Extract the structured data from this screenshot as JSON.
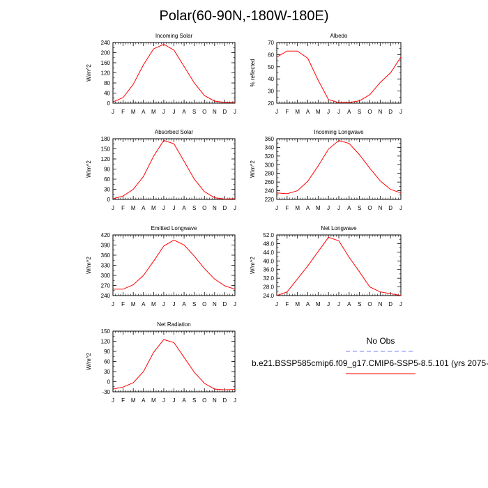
{
  "title": "Polar(60-90N,-180W-180E)",
  "legend": {
    "obs_label": "No Obs",
    "obs_color": "#8080ff",
    "model_label": "b.e21.BSSP585cmip6.f09_g17.CMIP6-SSP5-8.5.101 (yrs 2075-",
    "model_color": "#ff0000"
  },
  "chart_data": [
    {
      "type": "line",
      "title": "Incoming Solar",
      "ylabel": "W/m^2",
      "categories": [
        "J",
        "F",
        "M",
        "A",
        "M",
        "J",
        "J",
        "A",
        "S",
        "O",
        "N",
        "D",
        "J"
      ],
      "ylim": [
        0,
        240
      ],
      "yticks": [
        "0",
        "40",
        "80",
        "120",
        "160",
        "200",
        "240"
      ],
      "series": [
        {
          "values": [
            5,
            22,
            75,
            152,
            215,
            233,
            210,
            145,
            80,
            30,
            8,
            3,
            5
          ]
        }
      ]
    },
    {
      "type": "line",
      "title": "Albedo",
      "ylabel": "% reflected",
      "categories": [
        "J",
        "F",
        "M",
        "A",
        "M",
        "J",
        "J",
        "A",
        "S",
        "O",
        "N",
        "D",
        "J"
      ],
      "ylim": [
        20,
        70
      ],
      "yticks": [
        "20",
        "30",
        "40",
        "50",
        "60",
        "70"
      ],
      "series": [
        {
          "values": [
            58,
            63,
            63,
            57,
            39,
            23,
            20.5,
            20.5,
            22,
            27,
            37,
            45,
            58
          ]
        }
      ]
    },
    {
      "type": "line",
      "title": "Absorbed Solar",
      "ylabel": "W/m^2",
      "categories": [
        "J",
        "F",
        "M",
        "A",
        "M",
        "J",
        "J",
        "A",
        "S",
        "O",
        "N",
        "D",
        "J"
      ],
      "ylim": [
        0,
        180
      ],
      "yticks": [
        "0",
        "30",
        "60",
        "90",
        "120",
        "150",
        "180"
      ],
      "series": [
        {
          "values": [
            2,
            10,
            30,
            68,
            128,
            175,
            165,
            113,
            60,
            23,
            5,
            1,
            2
          ]
        }
      ]
    },
    {
      "type": "line",
      "title": "Incoming Longwave",
      "ylabel": "W/m^2",
      "categories": [
        "J",
        "F",
        "M",
        "A",
        "M",
        "J",
        "J",
        "A",
        "S",
        "O",
        "N",
        "D",
        "J"
      ],
      "ylim": [
        220,
        360
      ],
      "yticks": [
        "220",
        "240",
        "260",
        "280",
        "300",
        "320",
        "340",
        "360"
      ],
      "series": [
        {
          "values": [
            235,
            233,
            240,
            262,
            297,
            336,
            356,
            349,
            323,
            292,
            263,
            243,
            235
          ]
        }
      ]
    },
    {
      "type": "line",
      "title": "Emitted Longwave",
      "ylabel": "W/m^2",
      "categories": [
        "J",
        "F",
        "M",
        "A",
        "M",
        "J",
        "J",
        "A",
        "S",
        "O",
        "N",
        "D",
        "J"
      ],
      "ylim": [
        240,
        420
      ],
      "yticks": [
        "240",
        "270",
        "300",
        "330",
        "360",
        "390",
        "420"
      ],
      "series": [
        {
          "values": [
            259,
            259,
            272,
            300,
            342,
            387,
            405,
            390,
            357,
            320,
            289,
            269,
            259
          ]
        }
      ]
    },
    {
      "type": "line",
      "title": "Net Longwave",
      "ylabel": "W/m^2",
      "categories": [
        "J",
        "F",
        "M",
        "A",
        "M",
        "J",
        "J",
        "A",
        "S",
        "O",
        "N",
        "D",
        "J"
      ],
      "ylim": [
        24,
        52
      ],
      "yticks": [
        "24.0",
        "28.0",
        "32.0",
        "36.0",
        "40.0",
        "44.0",
        "48.0",
        "52.0"
      ],
      "series": [
        {
          "values": [
            24,
            25.7,
            31.7,
            37.7,
            44.3,
            50.9,
            49.3,
            41.7,
            34.9,
            28.0,
            25.7,
            24.9,
            24.1
          ]
        }
      ]
    },
    {
      "type": "line",
      "title": "Net Radiation",
      "ylabel": "W/m^2",
      "categories": [
        "J",
        "F",
        "M",
        "A",
        "M",
        "J",
        "J",
        "A",
        "S",
        "O",
        "N",
        "D",
        "J"
      ],
      "ylim": [
        -30,
        150
      ],
      "yticks": [
        "-30",
        "0",
        "30",
        "60",
        "90",
        "120",
        "150"
      ],
      "series": [
        {
          "values": [
            -22,
            -16,
            -3,
            30,
            87,
            125,
            116,
            72,
            28,
            -5,
            -22,
            -24,
            -23
          ]
        }
      ]
    }
  ]
}
